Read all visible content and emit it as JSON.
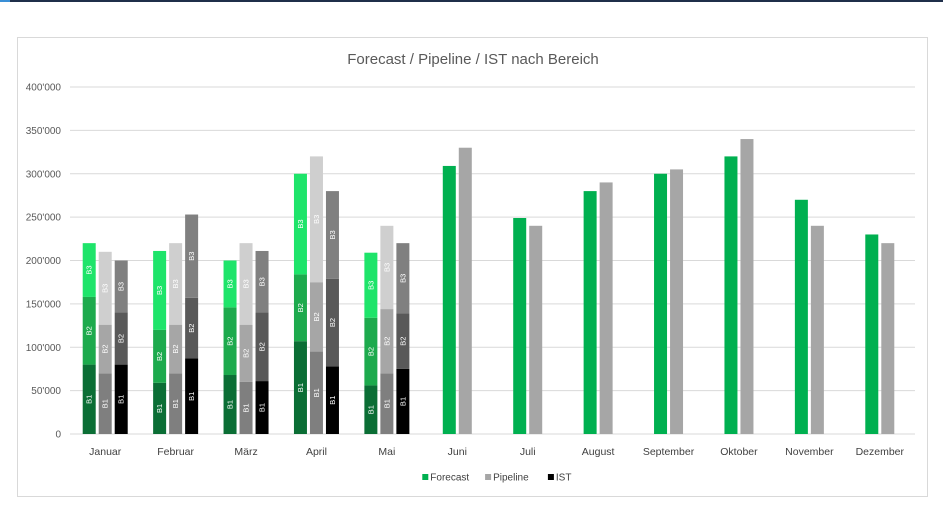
{
  "chart_data": {
    "type": "bar",
    "title": "Forecast / Pipeline / IST nach Bereich",
    "xlabel": "",
    "ylabel": "",
    "ylim": [
      0,
      400000
    ],
    "yticks": [
      "0",
      "50'000",
      "100'000",
      "150'000",
      "200'000",
      "250'000",
      "300'000",
      "350'000",
      "400'000"
    ],
    "grid": true,
    "legend": "bottom",
    "categories": [
      "Januar",
      "Februar",
      "März",
      "April",
      "Mai",
      "Juni",
      "Juli",
      "August",
      "September",
      "Oktober",
      "November",
      "Dezember"
    ],
    "series": [
      {
        "name": "Forecast",
        "color": "#00b050",
        "values": [
          220000,
          211000,
          200000,
          300000,
          209000,
          309000,
          249000,
          280000,
          300000,
          320000,
          270000,
          230000
        ],
        "segments": {
          "B1": [
            80000,
            59000,
            68000,
            107000,
            56000,
            null,
            null,
            null,
            null,
            null,
            null,
            null
          ],
          "B2": [
            78000,
            61000,
            78000,
            77000,
            78000,
            null,
            null,
            null,
            null,
            null,
            null,
            null
          ],
          "B3": [
            62000,
            91000,
            54000,
            116000,
            75000,
            null,
            null,
            null,
            null,
            null,
            null,
            null
          ]
        },
        "segment_colors": {
          "B1": "#0b6e35",
          "B2": "#1daa4d",
          "B3": "#1ee46a"
        }
      },
      {
        "name": "Pipeline",
        "color": "#a6a6a6",
        "values": [
          210000,
          220000,
          220000,
          320000,
          240000,
          330000,
          240000,
          290000,
          305000,
          340000,
          240000,
          220000
        ],
        "segments": {
          "B1": [
            70000,
            70000,
            60000,
            95000,
            70000,
            null,
            null,
            null,
            null,
            null,
            null,
            null
          ],
          "B2": [
            56000,
            56000,
            66000,
            80000,
            74000,
            null,
            null,
            null,
            null,
            null,
            null,
            null
          ],
          "B3": [
            84000,
            94000,
            94000,
            145000,
            96000,
            null,
            null,
            null,
            null,
            null,
            null,
            null
          ]
        },
        "segment_colors": {
          "B1": "#7f7f7f",
          "B2": "#a6a6a6",
          "B3": "#cfcfcf"
        }
      },
      {
        "name": "IST",
        "color": "#000000",
        "values": [
          200000,
          253000,
          211000,
          280000,
          220000,
          null,
          null,
          null,
          null,
          null,
          null,
          null
        ],
        "segments": {
          "B1": [
            80000,
            87000,
            61000,
            78000,
            75000,
            null,
            null,
            null,
            null,
            null,
            null,
            null
          ],
          "B2": [
            60000,
            70000,
            79000,
            101000,
            64000,
            null,
            null,
            null,
            null,
            null,
            null,
            null
          ],
          "B3": [
            60000,
            96000,
            71000,
            101000,
            81000,
            null,
            null,
            null,
            null,
            null,
            null,
            null
          ]
        },
        "segment_colors": {
          "B1": "#000000",
          "B2": "#595959",
          "B3": "#808080"
        }
      }
    ]
  },
  "segment_label_colors": {
    "B1": "#ffffff",
    "B2": "#ffffff",
    "B3": "#ffffff"
  },
  "axis_color": "#d9d9d9"
}
